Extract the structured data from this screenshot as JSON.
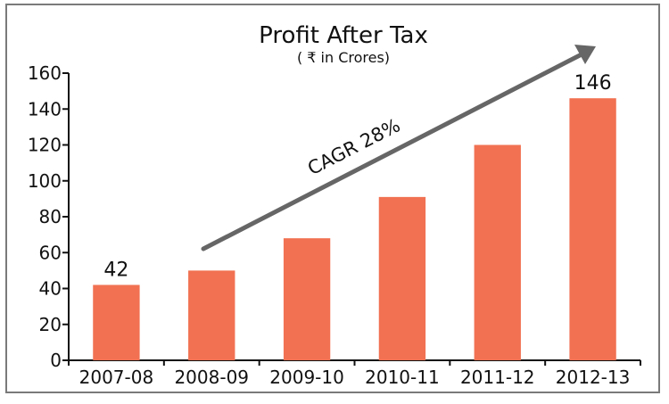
{
  "chart_data": {
    "type": "bar",
    "title": "Profit After Tax",
    "subtitle": "( ₹ in Crores)",
    "categories": [
      "2007-08",
      "2008-09",
      "2009-10",
      "2010-11",
      "2011-12",
      "2012-13"
    ],
    "values": [
      42,
      50,
      68,
      91,
      120,
      146
    ],
    "data_labels": [
      {
        "index": 0,
        "text": "42"
      },
      {
        "index": 5,
        "text": "146"
      }
    ],
    "xlabel": "",
    "ylabel": "",
    "ylim": [
      0,
      160
    ],
    "yticks": [
      0,
      20,
      40,
      60,
      80,
      100,
      120,
      140,
      160
    ],
    "grid": false,
    "bar_color": "#f17152",
    "annotation": {
      "text": "CAGR 28%",
      "arrow_color": "#666666"
    }
  }
}
